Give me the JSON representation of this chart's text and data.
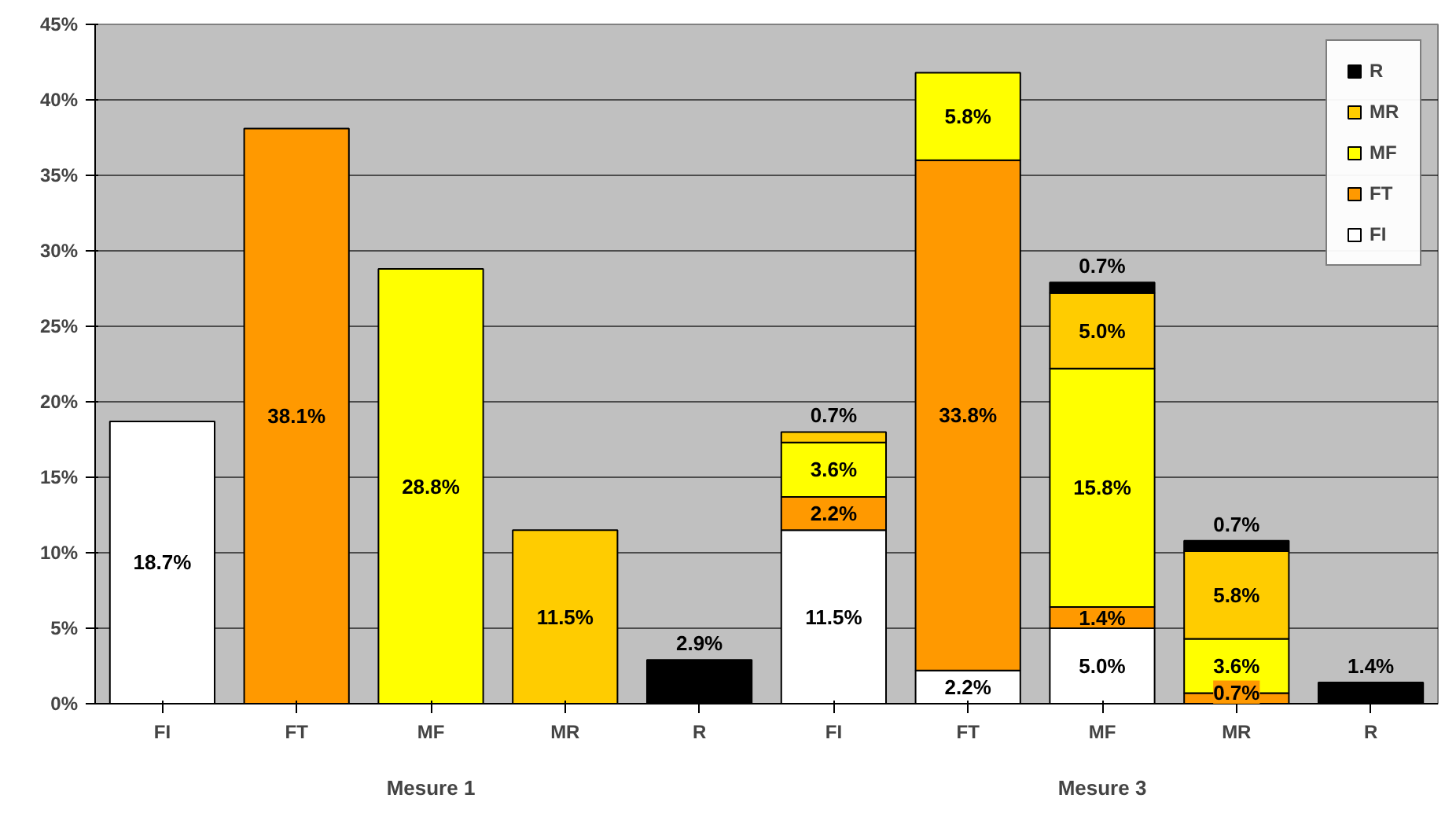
{
  "chart_data": {
    "type": "bar",
    "stacked": true,
    "categories": [
      "FI",
      "FT",
      "MF",
      "MR",
      "R",
      "FI",
      "FT",
      "MF",
      "MR",
      "R"
    ],
    "series": [
      {
        "name": "FI",
        "color": "#ffffff",
        "values": [
          18.7,
          null,
          null,
          null,
          null,
          11.5,
          2.2,
          5.0,
          null,
          null
        ],
        "value_labels": [
          "18.7%",
          null,
          null,
          null,
          null,
          "11.5%",
          "2.2%",
          "5.0%",
          null,
          null
        ]
      },
      {
        "name": "FT",
        "color": "#ff9900",
        "values": [
          null,
          38.1,
          null,
          null,
          null,
          2.2,
          33.8,
          1.4,
          0.7,
          null
        ],
        "value_labels": [
          null,
          "38.1%",
          null,
          null,
          null,
          "2.2%",
          "33.8%",
          "1.4%",
          "0.7%",
          null
        ]
      },
      {
        "name": "MF",
        "color": "#ffff00",
        "values": [
          null,
          null,
          28.8,
          null,
          null,
          3.6,
          5.8,
          15.8,
          3.6,
          null
        ],
        "value_labels": [
          null,
          null,
          "28.8%",
          null,
          null,
          "3.6%",
          "5.8%",
          "15.8%",
          "3.6%",
          null
        ]
      },
      {
        "name": "MR",
        "color": "#ffcc00",
        "values": [
          null,
          null,
          null,
          11.5,
          null,
          0.7,
          null,
          5.0,
          5.8,
          null
        ],
        "value_labels": [
          null,
          null,
          null,
          "11.5%",
          null,
          "0.7%",
          null,
          "5.0%",
          "5.8%",
          null
        ]
      },
      {
        "name": "R",
        "color": "#000000",
        "values": [
          null,
          null,
          null,
          null,
          2.9,
          null,
          null,
          0.7,
          0.7,
          1.4
        ],
        "value_labels": [
          null,
          null,
          null,
          null,
          "2.9%",
          null,
          null,
          "0.7%",
          "0.7%",
          "1.4%"
        ]
      }
    ],
    "annotations": [
      "Mesure 1",
      "Mesure 3"
    ],
    "ylim": [
      0,
      45
    ],
    "yticks": [
      {
        "value": 0,
        "label": "0%"
      },
      {
        "value": 5,
        "label": "5%"
      },
      {
        "value": 10,
        "label": "10%"
      },
      {
        "value": 15,
        "label": "15%"
      },
      {
        "value": 20,
        "label": "20%"
      },
      {
        "value": 25,
        "label": "25%"
      },
      {
        "value": 30,
        "label": "30%"
      },
      {
        "value": 35,
        "label": "35%"
      },
      {
        "value": 40,
        "label": "40%"
      },
      {
        "value": 45,
        "label": "45%"
      }
    ],
    "grid": "y",
    "legend": "top right"
  }
}
